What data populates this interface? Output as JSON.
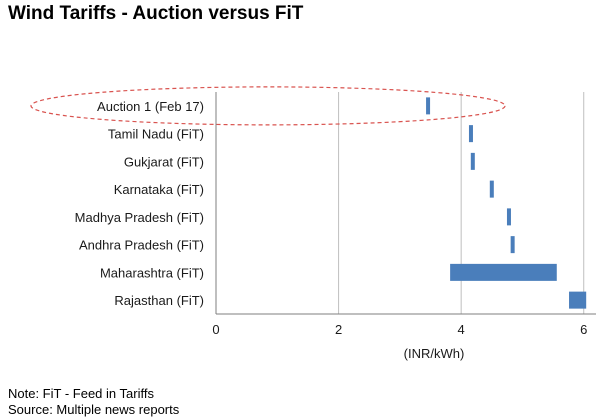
{
  "title": "Wind Tariffs - Auction versus FiT",
  "notes": {
    "line1": "Note: FiT - Feed in Tariffs",
    "line2": "Source: Multiple news reports"
  },
  "colors": {
    "bar": "#4a7ebb",
    "gridline": "#bfbfbf",
    "axis": "#7f7f7f",
    "highlight": "#d9534f"
  },
  "chart_data": {
    "type": "bar",
    "orientation": "horizontal",
    "style": "floating-range",
    "title": "Wind Tariffs - Auction versus FiT",
    "xlabel": "(INR/kWh)",
    "ylabel": "",
    "xlim": [
      0,
      6.2
    ],
    "xticks": [
      0,
      2,
      4,
      6
    ],
    "grid": true,
    "highlighted_category": "Auction 1 (Feb 17)",
    "categories": [
      "Auction 1 (Feb 17)",
      "Tamil Nadu (FiT)",
      "Gukjarat (FiT)",
      "Karnataka (FiT)",
      "Madhya Pradesh (FiT)",
      "Andhra Pradesh (FiT)",
      "Maharashtra (FiT)",
      "Rajasthan (FiT)"
    ],
    "ranges": [
      [
        3.46,
        3.46
      ],
      [
        4.16,
        4.16
      ],
      [
        4.19,
        4.19
      ],
      [
        4.5,
        4.5
      ],
      [
        4.78,
        4.78
      ],
      [
        4.84,
        4.84
      ],
      [
        3.82,
        5.56
      ],
      [
        5.76,
        6.04
      ]
    ]
  }
}
